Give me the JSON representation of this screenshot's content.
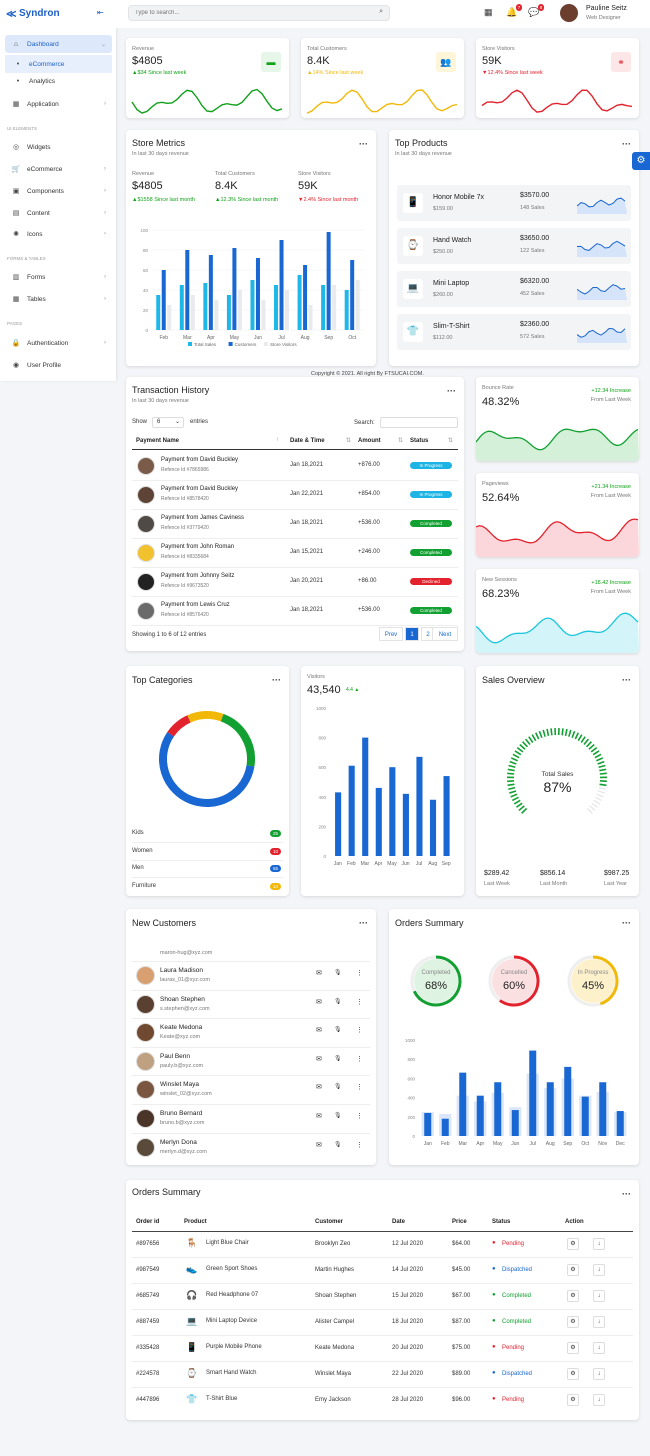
{
  "brand": {
    "name": "Syndron",
    "toggle": "⇤"
  },
  "sidebar": {
    "items": [
      {
        "label": "Dashboard",
        "icon": "home-icon",
        "glyph": "⌂"
      },
      {
        "label": "eCommerce",
        "icon": "dot-icon",
        "glyph": "•"
      },
      {
        "label": "Analytics",
        "icon": "dot-icon",
        "glyph": "•"
      },
      {
        "label": "Application",
        "icon": "grid-icon",
        "glyph": "▦"
      },
      {
        "label": "Widgets",
        "icon": "widget-icon",
        "glyph": "◎"
      },
      {
        "label": "eCommerce",
        "icon": "cart-icon",
        "glyph": "🛒"
      },
      {
        "label": "Components",
        "icon": "box-icon",
        "glyph": "▣"
      },
      {
        "label": "Content",
        "icon": "content-icon",
        "glyph": "▤"
      },
      {
        "label": "Icons",
        "icon": "icons-icon",
        "glyph": "✺"
      },
      {
        "label": "Forms",
        "icon": "forms-icon",
        "glyph": "▥"
      },
      {
        "label": "Tables",
        "icon": "table-icon",
        "glyph": "▦"
      },
      {
        "label": "Authentication",
        "icon": "lock-icon",
        "glyph": "🔒"
      },
      {
        "label": "User Profile",
        "icon": "user-icon",
        "glyph": "◉"
      }
    ],
    "sections": {
      "ui": "UI ELEMENTS",
      "forms": "FORMS & TABLES",
      "pages": "PAGES"
    }
  },
  "topbar": {
    "search_placeholder": "Type to search...",
    "notif_count": "7",
    "msg_count": "8",
    "user_name": "Pauline Seitz",
    "user_role": "Web Designer"
  },
  "kpis": [
    {
      "label": "Revenue",
      "value": "$4805",
      "trend": "▲$34 Since last week",
      "color": "#11a11a",
      "icon_color": "#e6f6e8",
      "icon": "wallet-icon",
      "glyph": "▬"
    },
    {
      "label": "Total Customers",
      "value": "8.4K",
      "trend": "▲14% Since last week",
      "color": "#f2b807",
      "icon_color": "#fff5d9",
      "icon": "users-icon",
      "glyph": "👥"
    },
    {
      "label": "Store Visitors",
      "value": "59K",
      "trend": "▼12.4% Since last week",
      "color": "#e2232d",
      "icon_color": "#fde6e8",
      "icon": "binoculars-icon",
      "glyph": "⚭"
    }
  ],
  "store_metrics": {
    "title": "Store Metrics",
    "subtitle": "In last 30 days revenue",
    "stats": [
      {
        "label": "Revenue",
        "value": "$4805",
        "trend": "▲$1558 Since last month"
      },
      {
        "label": "Total Customers",
        "value": "8.4K",
        "trend": "▲12.3% Since last month"
      },
      {
        "label": "Store Visitors",
        "value": "59K",
        "trend": "▼2.4% Since last month"
      }
    ]
  },
  "top_products": {
    "title": "Top Products",
    "subtitle": "In last 30 days revenue",
    "items": [
      {
        "name": "Honor Mobile 7x",
        "price": "$159.00",
        "revenue": "$3570.00",
        "sales": "148 Sales",
        "icon": "phone-icon",
        "glyph": "📱"
      },
      {
        "name": "Hand Watch",
        "price": "$250.00",
        "revenue": "$3650.00",
        "sales": "122 Sales",
        "icon": "watch-icon",
        "glyph": "⌚"
      },
      {
        "name": "Mini Laptop",
        "price": "$260.00",
        "revenue": "$6320.00",
        "sales": "452 Sales",
        "icon": "laptop-icon",
        "glyph": "💻"
      },
      {
        "name": "Slim-T-Shirt",
        "price": "$112.00",
        "revenue": "$2360.00",
        "sales": "572 Sales",
        "icon": "tshirt-icon",
        "glyph": "👕"
      }
    ]
  },
  "copyright": "Copyright © 2021. All right By FTSUCAI.COM.",
  "transactions": {
    "title": "Transaction History",
    "subtitle": "In last 30 days revenue",
    "show_label": "Show",
    "entries_value": "6",
    "entries_label": "entries",
    "search_label": "Search:",
    "columns": [
      "Payment Name",
      "Date & Time",
      "Amount",
      "Status"
    ],
    "rows": [
      {
        "name": "Payment from David Buckley",
        "ref": "Refence Id #7865986",
        "date": "Jan 18,2021",
        "amount": "+876.00",
        "status": "In Progress",
        "color": "#1bb4e4"
      },
      {
        "name": "Payment from David Buckley",
        "ref": "Refence Id #8578420",
        "date": "Jan 22,2021",
        "amount": "+854.00",
        "status": "In Progress",
        "color": "#1bb4e4"
      },
      {
        "name": "Payment from James Caviness",
        "ref": "Refence Id #3779420",
        "date": "Jan 18,2021",
        "amount": "+536.00",
        "status": "Completed",
        "color": "#13a032"
      },
      {
        "name": "Payment from John Roman",
        "ref": "Refence Id #8335684",
        "date": "Jan 15,2021",
        "amount": "+246.00",
        "status": "Completed",
        "color": "#13a032"
      },
      {
        "name": "Payment from Johnny Seitz",
        "ref": "Refence Id #9673520",
        "date": "Jan 20,2021",
        "amount": "+86.00",
        "status": "Declined",
        "color": "#e2232d"
      },
      {
        "name": "Payment from Lewis Cruz",
        "ref": "Refence Id #8576420",
        "date": "Jan 18,2021",
        "amount": "+536.00",
        "status": "Completed",
        "color": "#13a032"
      }
    ],
    "footer": "Showing 1 to 6 of 12 entries",
    "pages": [
      "Prev",
      "1",
      "2",
      "Next"
    ]
  },
  "mini_stats": [
    {
      "label": "Bounce Rate",
      "value": "48.32%",
      "increase": "+12.34 Increase",
      "period": "From Last Week",
      "color": "#13a032",
      "fill": "#d4f0d8"
    },
    {
      "label": "Pageviews",
      "value": "52.64%",
      "increase": "+21.34 Increase",
      "period": "From Last Week",
      "color": "#e2232d",
      "fill": "#fbd6da"
    },
    {
      "label": "New Sessions",
      "value": "68.23%",
      "increase": "+18.42 Increase",
      "period": "From Last Week",
      "color": "#19c6dc",
      "fill": "#d3f4f8"
    }
  ],
  "top_categories": {
    "title": "Top Categories",
    "items": [
      {
        "label": "Kids",
        "value": "25",
        "color": "#13a032"
      },
      {
        "label": "Women",
        "value": "10",
        "color": "#e2232d"
      },
      {
        "label": "Men",
        "value": "65",
        "color": "#1967d2"
      },
      {
        "label": "Furniture",
        "value": "14",
        "color": "#f2b807"
      }
    ]
  },
  "visitors": {
    "label": "Visitors",
    "value": "43,540",
    "change": "4.4 ▲"
  },
  "sales_overview": {
    "title": "Sales Overview",
    "center_label": "Total Sales",
    "center_value": "87%",
    "percent": 87,
    "stats": [
      {
        "value": "$289.42",
        "label": "Last Week"
      },
      {
        "value": "$856.14",
        "label": "Last Month"
      },
      {
        "value": "$987.25",
        "label": "Last Year"
      }
    ]
  },
  "new_customers": {
    "title": "New Customers",
    "first_email": "maron-hug@xyz.com",
    "items": [
      {
        "name": "Laura Madison",
        "email": "lauras_01@xyz.com",
        "avatar": "#d8a070"
      },
      {
        "name": "Shoan Stephen",
        "email": "s.stephen@xyz.com",
        "avatar": "#5a4030"
      },
      {
        "name": "Keate Medona",
        "email": "Keate@xyz.com",
        "avatar": "#704a30"
      },
      {
        "name": "Paul Benn",
        "email": "pauly.b@xyz.com",
        "avatar": "#bfa080"
      },
      {
        "name": "Winslet Maya",
        "email": "winslet_02@xyz.com",
        "avatar": "#7a5540"
      },
      {
        "name": "Bruno Bernard",
        "email": "bruno.b@xyz.com",
        "avatar": "#4a3528"
      },
      {
        "name": "Merlyn Dona",
        "email": "merlyn.d@xyz.com",
        "avatar": "#5a4a3a"
      }
    ]
  },
  "orders_summary_chart": {
    "title": "Orders Summary",
    "rings": [
      {
        "label": "Completed",
        "value": "68%",
        "percent": 68,
        "color": "#13a032",
        "bg": "#dff3e2"
      },
      {
        "label": "Cancelled",
        "value": "60%",
        "percent": 60,
        "color": "#e2232d",
        "bg": "#fbe0e2"
      },
      {
        "label": "In Progress",
        "value": "45%",
        "percent": 45,
        "color": "#f2b807",
        "bg": "#fdf1cc"
      }
    ]
  },
  "orders_table": {
    "title": "Orders Summary",
    "columns": [
      "Order id",
      "Product",
      "Customer",
      "Date",
      "Price",
      "Status",
      "Action"
    ],
    "rows": [
      {
        "id": "#897656",
        "product": "Light Blue Chair",
        "customer": "Brooklyn Zeo",
        "date": "12 Jul 2020",
        "price": "$64.00",
        "status": "Pending",
        "color": "#e2232d",
        "icon": "chair-icon",
        "glyph": "🪑"
      },
      {
        "id": "#987549",
        "product": "Green Sport Shoes",
        "customer": "Martin Hughes",
        "date": "14 Jul 2020",
        "price": "$45.00",
        "status": "Dispatched",
        "color": "#1967d2",
        "icon": "shoe-icon",
        "glyph": "👟"
      },
      {
        "id": "#685749",
        "product": "Red Headphone 07",
        "customer": "Shoan Stephen",
        "date": "15 Jul 2020",
        "price": "$67.00",
        "status": "Completed",
        "color": "#13a032",
        "icon": "headphone-icon",
        "glyph": "🎧"
      },
      {
        "id": "#887459",
        "product": "Mini Laptop Device",
        "customer": "Alister Campel",
        "date": "18 Jul 2020",
        "price": "$87.00",
        "status": "Completed",
        "color": "#13a032",
        "icon": "laptop-icon",
        "glyph": "💻"
      },
      {
        "id": "#335428",
        "product": "Purple Mobile Phone",
        "customer": "Keate Medona",
        "date": "20 Jul 2020",
        "price": "$75.00",
        "status": "Pending",
        "color": "#e2232d",
        "icon": "phone-icon",
        "glyph": "📱"
      },
      {
        "id": "#224578",
        "product": "Smart Hand Watch",
        "customer": "Winslet Maya",
        "date": "22 Jul 2020",
        "price": "$89.00",
        "status": "Dispatched",
        "color": "#1967d2",
        "icon": "watch-icon",
        "glyph": "⌚"
      },
      {
        "id": "#447896",
        "product": "T-Shirt Blue",
        "customer": "Emy Jackson",
        "date": "28 Jul 2020",
        "price": "$96.00",
        "status": "Pending",
        "color": "#e2232d",
        "icon": "tshirt-icon",
        "glyph": "👕"
      }
    ]
  },
  "chart_data": [
    {
      "type": "bar",
      "id": "store-metrics",
      "categories": [
        "Feb",
        "Mar",
        "Apr",
        "May",
        "Jun",
        "Jul",
        "Aug",
        "Sep",
        "Oct"
      ],
      "ylim": [
        0,
        100
      ],
      "yticks": [
        "0",
        "20",
        "40",
        "60",
        "80",
        "100"
      ],
      "legend": [
        "Total Sales",
        "Customers",
        "Store Visitors"
      ],
      "series": [
        {
          "name": "Total Sales",
          "color": "#1fb7e8",
          "values": [
            35,
            45,
            47,
            35,
            50,
            45,
            55,
            45,
            40
          ]
        },
        {
          "name": "Customers",
          "color": "#1967d2",
          "values": [
            60,
            80,
            75,
            82,
            72,
            90,
            65,
            98,
            70
          ]
        },
        {
          "name": "Store Visitors",
          "color": "#e8eaee",
          "values": [
            25,
            35,
            30,
            40,
            30,
            40,
            25,
            45,
            50
          ]
        }
      ]
    },
    {
      "type": "bar",
      "id": "visitors",
      "categories": [
        "Jan",
        "Feb",
        "Mar",
        "Apr",
        "May",
        "Jun",
        "Jul",
        "Aug",
        "Sep"
      ],
      "ylim": [
        0,
        1000
      ],
      "yticks": [
        "0",
        "200",
        "400",
        "600",
        "800",
        "1000"
      ],
      "series": [
        {
          "name": "",
          "color": "#1967d2",
          "values": [
            430,
            610,
            800,
            460,
            600,
            420,
            670,
            380,
            540
          ]
        }
      ]
    },
    {
      "type": "bar",
      "id": "orders-summary",
      "categories": [
        "Jan",
        "Feb",
        "Mar",
        "Apr",
        "May",
        "Jun",
        "Jul",
        "Aug",
        "Sep",
        "Oct",
        "Nov",
        "Dec"
      ],
      "ylim": [
        0,
        1000
      ],
      "yticks": [
        "0",
        "200",
        "400",
        "600",
        "800",
        "1000"
      ],
      "series": [
        {
          "name": "",
          "color": "#1967d2",
          "values": [
            240,
            180,
            660,
            420,
            560,
            270,
            890,
            560,
            720,
            410,
            560,
            260
          ]
        },
        {
          "name": "",
          "color": "#dbe7f8",
          "values": [
            250,
            230,
            420,
            360,
            450,
            300,
            650,
            500,
            600,
            420,
            460,
            250
          ]
        }
      ]
    },
    {
      "type": "pie",
      "id": "top-categories",
      "categories": [
        "Kids",
        "Women",
        "Men",
        "Furniture"
      ],
      "values": [
        25,
        10,
        65,
        14
      ]
    }
  ]
}
